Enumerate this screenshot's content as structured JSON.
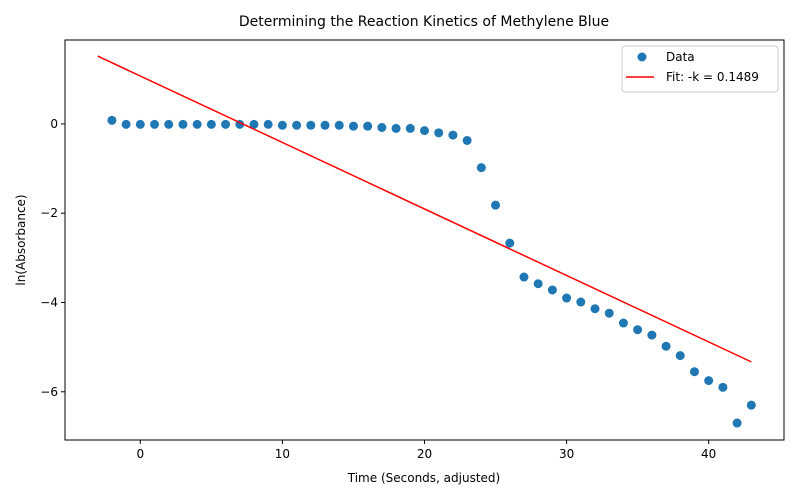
{
  "chart_data": {
    "type": "scatter",
    "title": "Determining the Reaction Kinetics of Methylene Blue",
    "xlabel": "Time (Seconds, adjusted)",
    "ylabel": "ln(Absorbance)",
    "xlim": [
      -5.3,
      45.3
    ],
    "ylim": [
      -7.08,
      1.88
    ],
    "xticks": [
      0,
      10,
      20,
      30,
      40
    ],
    "yticks": [
      0,
      -2,
      -4,
      -6
    ],
    "ytick_labels": [
      "0",
      "−2",
      "−4",
      "−6"
    ],
    "grid": false,
    "legend_position": "top-right",
    "series": [
      {
        "name": "Data",
        "kind": "scatter",
        "color": "#1f77b4",
        "x": [
          -2,
          -1,
          0,
          1,
          2,
          3,
          4,
          5,
          6,
          7,
          8,
          9,
          10,
          11,
          12,
          13,
          14,
          15,
          16,
          17,
          18,
          19,
          20,
          21,
          22,
          23,
          24,
          25,
          26,
          27,
          28,
          29,
          30,
          31,
          32,
          33,
          34,
          35,
          36,
          37,
          38,
          39,
          40,
          41,
          42,
          43
        ],
        "y": [
          0.08,
          -0.01,
          -0.01,
          -0.01,
          -0.01,
          -0.01,
          -0.01,
          -0.01,
          -0.01,
          -0.01,
          -0.01,
          -0.01,
          -0.03,
          -0.03,
          -0.03,
          -0.03,
          -0.03,
          -0.05,
          -0.05,
          -0.08,
          -0.1,
          -0.1,
          -0.15,
          -0.2,
          -0.25,
          -0.37,
          -0.98,
          -1.82,
          -2.67,
          -3.43,
          -3.58,
          -3.72,
          -3.9,
          -3.99,
          -4.14,
          -4.24,
          -4.46,
          -4.61,
          -4.73,
          -4.98,
          -5.19,
          -5.55,
          -5.75,
          -5.9,
          -6.7,
          -6.3
        ]
      },
      {
        "name": "Fit: -k = 0.1489",
        "kind": "line",
        "color": "#ff0000",
        "x": [
          -3,
          43
        ],
        "y": [
          1.52,
          -5.33
        ]
      }
    ]
  }
}
